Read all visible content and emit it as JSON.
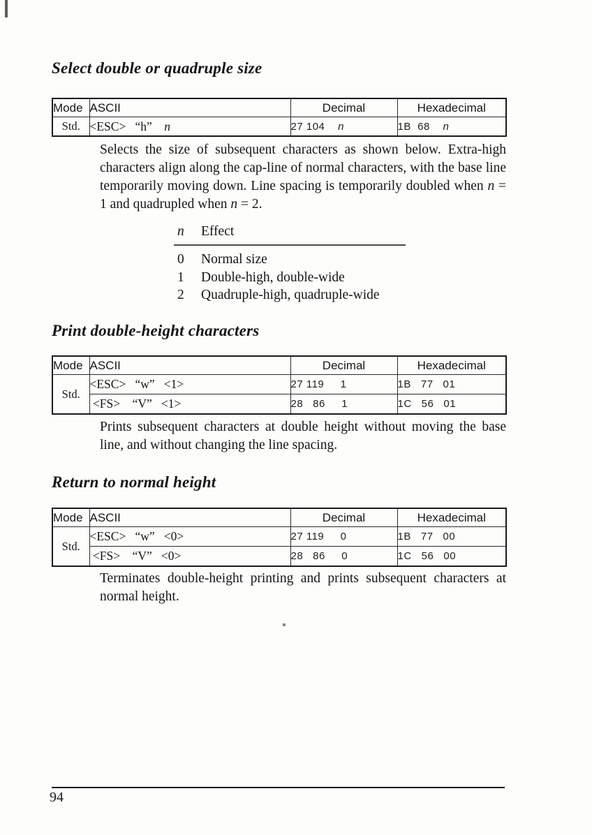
{
  "section1": {
    "heading": "Select double or quadruple size",
    "table": {
      "col_mode": "Mode",
      "col_ascii": "ASCII",
      "col_decimal": "Decimal",
      "col_hex": "Hexadecimal",
      "mode": "Std.",
      "rows": [
        {
          "ascii": [
            {
              "t": "<ESC>   “h”    "
            },
            {
              "t": "n",
              "i": true
            }
          ],
          "decimal": [
            {
              "t": "27 104    "
            },
            {
              "t": "n",
              "i": true
            }
          ],
          "hex": [
            {
              "t": "1B  68    "
            },
            {
              "t": "n",
              "i": true
            }
          ]
        }
      ]
    },
    "paragraph": [
      {
        "t": "Selects the size of subsequent characters as shown below. Extra-high characters align along the cap-line of normal characters, with the base line temporarily moving down. Line spacing is temporarily doubled when "
      },
      {
        "t": "n",
        "i": true
      },
      {
        "t": " = 1 and quadrupled when "
      },
      {
        "t": "n",
        "i": true
      },
      {
        "t": " = 2."
      }
    ],
    "effect_table": {
      "col_n": "n",
      "col_effect": "Effect",
      "rows": [
        {
          "n": "0",
          "effect": "Normal size"
        },
        {
          "n": "1",
          "effect": "Double-high, double-wide"
        },
        {
          "n": "2",
          "effect": "Quadruple-high, quadruple-wide"
        }
      ]
    }
  },
  "section2": {
    "heading": "Print double-height characters",
    "table": {
      "col_mode": "Mode",
      "col_ascii": "ASCII",
      "col_decimal": "Decimal",
      "col_hex": "Hexadecimal",
      "mode": "Std.",
      "rows": [
        {
          "ascii": [
            {
              "t": "<ESC>   “w”   <1>"
            }
          ],
          "decimal": [
            {
              "t": "27 119     1"
            }
          ],
          "hex": [
            {
              "t": "1B   77   01"
            }
          ]
        },
        {
          "ascii": [
            {
              "t": " <FS>    “V”   <1>"
            }
          ],
          "decimal": [
            {
              "t": "28   86     1"
            }
          ],
          "hex": [
            {
              "t": "1C   56   01"
            }
          ]
        }
      ]
    },
    "paragraph": [
      {
        "t": "Prints subsequent characters at double height without moving the base line, and without changing the line spacing."
      }
    ]
  },
  "section3": {
    "heading": "Return to normal height",
    "table": {
      "col_mode": "Mode",
      "col_ascii": "ASCII",
      "col_decimal": "Decimal",
      "col_hex": "Hexadecimal",
      "mode": "Std.",
      "rows": [
        {
          "ascii": [
            {
              "t": "<ESC>   “w”   <0>"
            }
          ],
          "decimal": [
            {
              "t": "27 119     0"
            }
          ],
          "hex": [
            {
              "t": "1B   77   00"
            }
          ]
        },
        {
          "ascii": [
            {
              "t": " <FS>    “V”   <0>"
            }
          ],
          "decimal": [
            {
              "t": "28   86     0"
            }
          ],
          "hex": [
            {
              "t": "1C   56   00"
            }
          ]
        }
      ]
    },
    "paragraph": [
      {
        "t": "Terminates double-height printing and prints subsequent characters at normal height."
      }
    ]
  },
  "footer": {
    "page_number": "94"
  }
}
